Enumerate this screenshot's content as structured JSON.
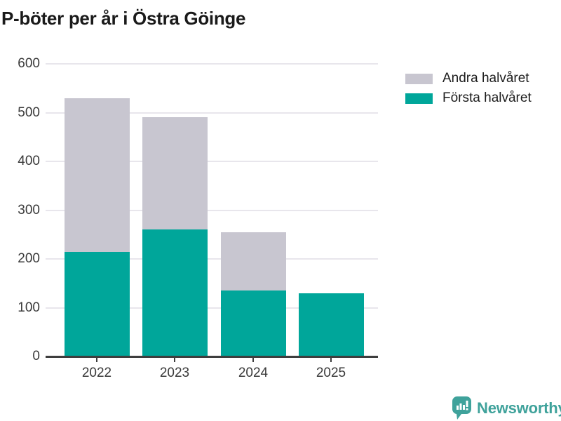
{
  "title": "P-böter per år i Östra Göinge",
  "colors": {
    "first_half": "#00a69a",
    "second_half": "#c8c6d0",
    "axis_line": "#3e3e3e",
    "grid_line": "#e8e6ec",
    "background": "#ffffff",
    "brand_teal": "#3fa29b"
  },
  "chart_data": {
    "type": "bar",
    "stacked": true,
    "title": "P-böter per år i Östra Göinge",
    "categories": [
      "2022",
      "2023",
      "2024",
      "2025"
    ],
    "series": [
      {
        "name": "Första halvåret",
        "color_key": "first_half",
        "values": [
          215,
          260,
          135,
          130
        ]
      },
      {
        "name": "Andra halvåret",
        "color_key": "second_half",
        "values": [
          315,
          230,
          120,
          0
        ]
      }
    ],
    "totals": [
      530,
      490,
      255,
      130
    ],
    "ylim": [
      0,
      600
    ],
    "yticks": [
      0,
      100,
      200,
      300,
      400,
      500,
      600
    ],
    "grid": "horizontal",
    "legend_position": "top-right",
    "legend_order": [
      "Andra halvåret",
      "Första halvåret"
    ]
  },
  "footer": {
    "brand": "Newsworthy",
    "logo_icon": "bar-chart-speech-bubble-icon"
  }
}
